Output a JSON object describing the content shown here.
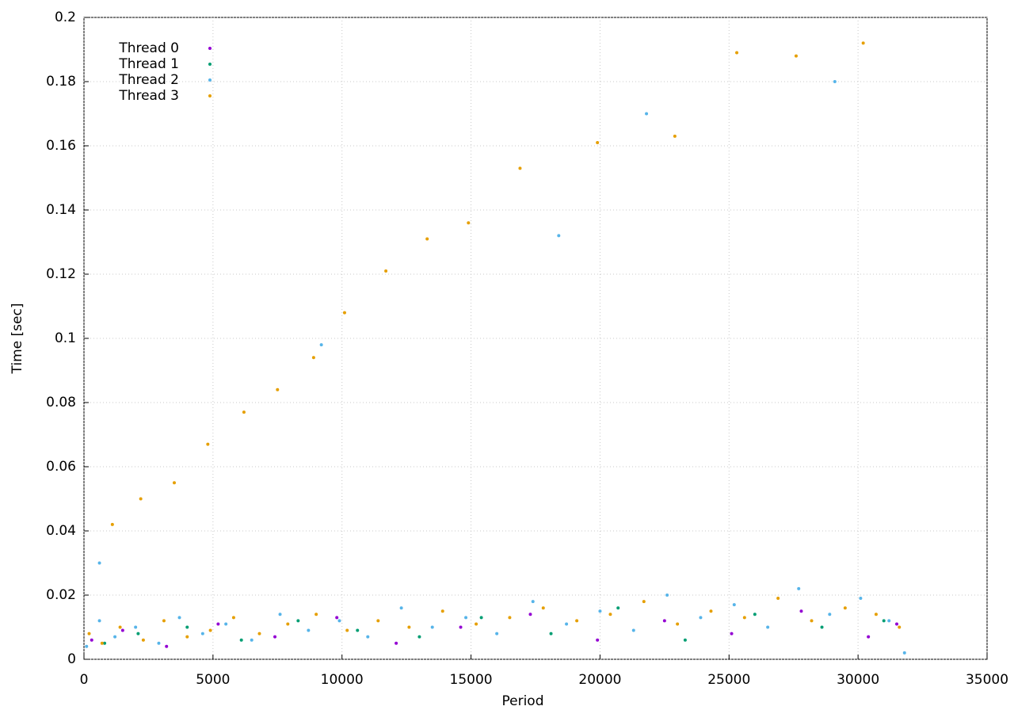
{
  "chart_data": {
    "type": "scatter",
    "x_label": "Period",
    "y_label": "Time [sec]",
    "xlim": [
      0,
      35000
    ],
    "xticks": [
      0,
      5000,
      10000,
      15000,
      20000,
      25000,
      30000,
      35000
    ],
    "ylim": [
      0,
      0.2
    ],
    "yticks": [
      0,
      0.02,
      0.04,
      0.06,
      0.08,
      0.1,
      0.12,
      0.14,
      0.16,
      0.18,
      0.2
    ],
    "grid": true,
    "legend": "top-left",
    "series": [
      {
        "name": "Thread 0",
        "color": "#9400d3",
        "x": [
          300,
          1500,
          3200,
          5200,
          7400,
          9800,
          12100,
          14600,
          17300,
          19900,
          22500,
          25100,
          27800,
          30400,
          31500
        ],
        "values": [
          0.006,
          0.009,
          0.004,
          0.011,
          0.007,
          0.013,
          0.005,
          0.01,
          0.014,
          0.006,
          0.012,
          0.008,
          0.015,
          0.007,
          0.011
        ]
      },
      {
        "name": "Thread 1",
        "color": "#009e73",
        "x": [
          800,
          2100,
          4000,
          6100,
          8300,
          10600,
          13000,
          15400,
          18100,
          20700,
          23300,
          26000,
          28600,
          31000
        ],
        "values": [
          0.005,
          0.008,
          0.01,
          0.006,
          0.012,
          0.009,
          0.007,
          0.013,
          0.008,
          0.016,
          0.006,
          0.014,
          0.01,
          0.012
        ]
      },
      {
        "name": "Thread 2",
        "color": "#56b4e9",
        "x": [
          100,
          600,
          1200,
          2000,
          2900,
          3700,
          4600,
          5500,
          6500,
          7600,
          8700,
          9900,
          11000,
          12300,
          13500,
          14800,
          16000,
          17400,
          18700,
          20000,
          21300,
          22600,
          23900,
          25200,
          26500,
          27700,
          28900,
          30100,
          31200,
          31800,
          600,
          9200,
          18400,
          21800,
          29100
        ],
        "values": [
          0.004,
          0.012,
          0.007,
          0.01,
          0.005,
          0.013,
          0.008,
          0.011,
          0.006,
          0.014,
          0.009,
          0.012,
          0.007,
          0.016,
          0.01,
          0.013,
          0.008,
          0.018,
          0.011,
          0.015,
          0.009,
          0.02,
          0.013,
          0.017,
          0.01,
          0.022,
          0.014,
          0.019,
          0.012,
          0.002,
          0.03,
          0.098,
          0.132,
          0.17,
          0.18
        ]
      },
      {
        "name": "Thread 3",
        "color": "#e69f00",
        "x": [
          200,
          700,
          1400,
          2300,
          3100,
          4000,
          4900,
          5800,
          6800,
          7900,
          9000,
          10200,
          11400,
          12600,
          13900,
          15200,
          16500,
          17800,
          19100,
          20400,
          21700,
          23000,
          24300,
          25600,
          26900,
          28200,
          29500,
          30700,
          31600,
          1100,
          2200,
          3500,
          4800,
          6200,
          7500,
          8900,
          10100,
          11700,
          13300,
          14900,
          16900,
          19900,
          22900,
          25300,
          27600,
          30200
        ],
        "values": [
          0.008,
          0.005,
          0.01,
          0.006,
          0.012,
          0.007,
          0.009,
          0.013,
          0.008,
          0.011,
          0.014,
          0.009,
          0.012,
          0.01,
          0.015,
          0.011,
          0.013,
          0.016,
          0.012,
          0.014,
          0.018,
          0.011,
          0.015,
          0.013,
          0.019,
          0.012,
          0.016,
          0.014,
          0.01,
          0.042,
          0.05,
          0.055,
          0.067,
          0.077,
          0.084,
          0.094,
          0.108,
          0.121,
          0.131,
          0.136,
          0.153,
          0.161,
          0.163,
          0.189,
          0.188,
          0.192
        ]
      }
    ]
  }
}
